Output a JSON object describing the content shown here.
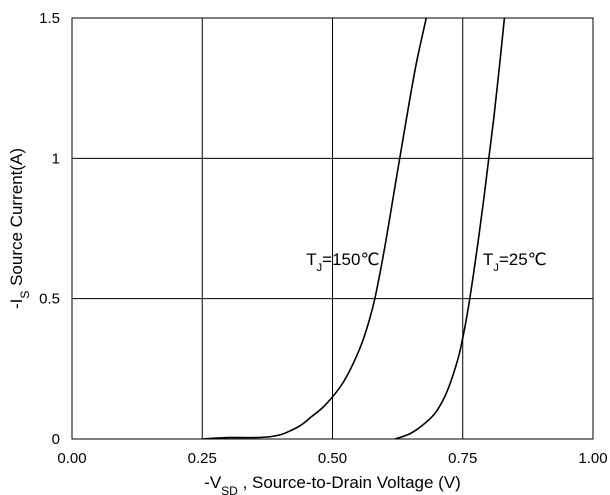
{
  "chart_data": {
    "type": "line",
    "xlabel": {
      "prefix": "-V",
      "sub": "SD",
      "suffix": " , Source-to-Drain Voltage (V)"
    },
    "ylabel": {
      "prefix": "-I",
      "sub": "S",
      "suffix": " Source Current(A)"
    },
    "xlim": [
      0,
      1
    ],
    "ylim": [
      0,
      1.5
    ],
    "xticks": [
      0,
      0.25,
      0.5,
      0.75,
      1
    ],
    "xtick_labels": [
      "0.00",
      "0.25",
      "0.50",
      "0.75",
      "1.00"
    ],
    "yticks": [
      0,
      0.5,
      1,
      1.5
    ],
    "ytick_labels": [
      "0",
      "0.5",
      "1",
      "1.5"
    ],
    "grid": true,
    "legend": "none",
    "series": [
      {
        "name": "TJ=150℃",
        "label": {
          "prefix": "T",
          "sub": "J",
          "suffix": "=150℃"
        },
        "x": [
          0.25,
          0.3,
          0.35,
          0.38,
          0.4,
          0.42,
          0.44,
          0.46,
          0.48,
          0.5,
          0.52,
          0.54,
          0.56,
          0.58,
          0.6,
          0.62,
          0.64,
          0.66,
          0.68
        ],
        "y": [
          0.0,
          0.005,
          0.005,
          0.008,
          0.015,
          0.03,
          0.05,
          0.08,
          0.11,
          0.15,
          0.2,
          0.27,
          0.36,
          0.49,
          0.68,
          0.9,
          1.12,
          1.33,
          1.5
        ]
      },
      {
        "name": "TJ=25℃",
        "label": {
          "prefix": "T",
          "sub": "J",
          "suffix": "=25℃"
        },
        "x": [
          0.62,
          0.65,
          0.68,
          0.7,
          0.72,
          0.74,
          0.75,
          0.76,
          0.77,
          0.78,
          0.79,
          0.8,
          0.81,
          0.82,
          0.83
        ],
        "y": [
          0.0,
          0.02,
          0.06,
          0.1,
          0.17,
          0.28,
          0.36,
          0.46,
          0.58,
          0.71,
          0.85,
          1.0,
          1.15,
          1.32,
          1.5
        ]
      }
    ],
    "annotations": [
      {
        "series": 0,
        "x": 0.52,
        "y": 0.62
      },
      {
        "series": 1,
        "x": 0.85,
        "y": 0.62
      }
    ]
  }
}
